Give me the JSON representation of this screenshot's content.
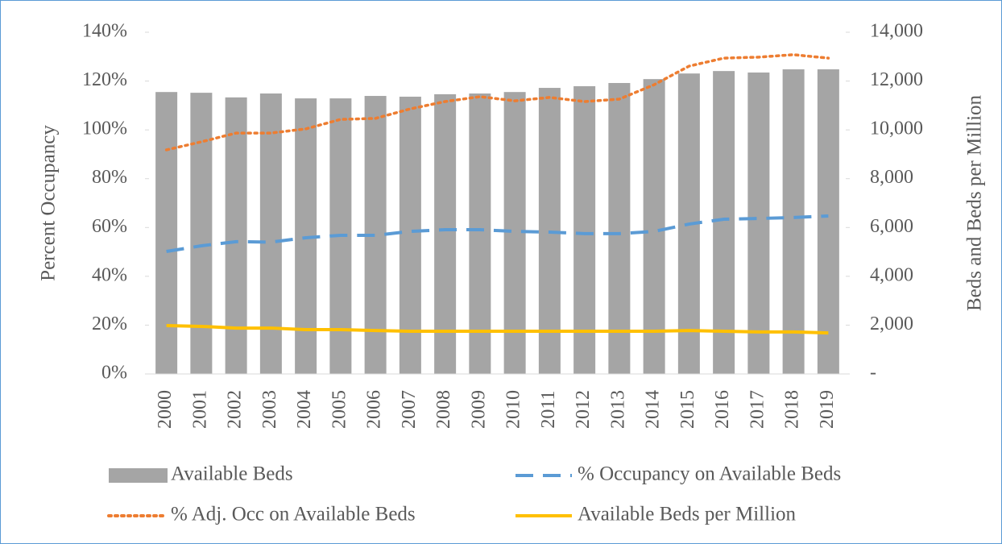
{
  "chart_data": {
    "type": "combo",
    "categories": [
      "2000",
      "2001",
      "2002",
      "2003",
      "2004",
      "2005",
      "2006",
      "2007",
      "2008",
      "2009",
      "2010",
      "2011",
      "2012",
      "2013",
      "2014",
      "2015",
      "2016",
      "2017",
      "2018",
      "2019"
    ],
    "ylabel": "Percent Occupancy",
    "y2label": "Beds and Beds per Million",
    "ylim": [
      0,
      140
    ],
    "yticks": [
      {
        "value": 0,
        "label": "0%"
      },
      {
        "value": 20,
        "label": "20%"
      },
      {
        "value": 40,
        "label": "40%"
      },
      {
        "value": 60,
        "label": "60%"
      },
      {
        "value": 80,
        "label": "80%"
      },
      {
        "value": 100,
        "label": "100%"
      },
      {
        "value": 120,
        "label": "120%"
      },
      {
        "value": 140,
        "label": "140%"
      }
    ],
    "y2lim": [
      0,
      14000
    ],
    "y2ticks": [
      {
        "value": 0,
        "label": "-"
      },
      {
        "value": 2000,
        "label": "2,000"
      },
      {
        "value": 4000,
        "label": "4,000"
      },
      {
        "value": 6000,
        "label": "6,000"
      },
      {
        "value": 8000,
        "label": "8,000"
      },
      {
        "value": 10000,
        "label": "10,000"
      },
      {
        "value": 12000,
        "label": "12,000"
      },
      {
        "value": 14000,
        "label": "14,000"
      }
    ],
    "legend": "bottom",
    "series": [
      {
        "name": "Available Beds",
        "type": "bar",
        "axis": "y2",
        "color": "#a5a5a5",
        "values": [
          11550,
          11520,
          11330,
          11490,
          11290,
          11290,
          11390,
          11360,
          11460,
          11490,
          11550,
          11720,
          11790,
          11920,
          12080,
          12310,
          12410,
          12350,
          12480,
          12480
        ]
      },
      {
        "name": "% Occupancy on Available Beds",
        "type": "line",
        "dash": "dashed",
        "color": "#5b9bd5",
        "values": [
          50.2,
          52.5,
          54.2,
          54.0,
          55.8,
          56.8,
          56.8,
          58.4,
          59.1,
          59.1,
          58.4,
          58.1,
          57.5,
          57.5,
          58.4,
          61.4,
          63.4,
          63.7,
          64.1,
          64.7
        ]
      },
      {
        "name": "% Adj. Occ on Available Beds",
        "type": "line",
        "dash": "dotted",
        "color": "#ed7d31",
        "values": [
          91.8,
          95.1,
          98.7,
          98.7,
          100.4,
          104.3,
          104.7,
          108.6,
          111.6,
          113.6,
          111.9,
          113.3,
          111.6,
          112.6,
          118.5,
          126.1,
          129.4,
          129.8,
          130.8,
          129.4
        ]
      },
      {
        "name": "Available Beds per Million",
        "type": "line",
        "dash": "solid",
        "axis": "y2",
        "color": "#ffc000",
        "values": [
          1980,
          1950,
          1880,
          1880,
          1815,
          1815,
          1780,
          1750,
          1750,
          1750,
          1750,
          1750,
          1750,
          1750,
          1750,
          1780,
          1750,
          1720,
          1720,
          1680
        ]
      }
    ]
  }
}
